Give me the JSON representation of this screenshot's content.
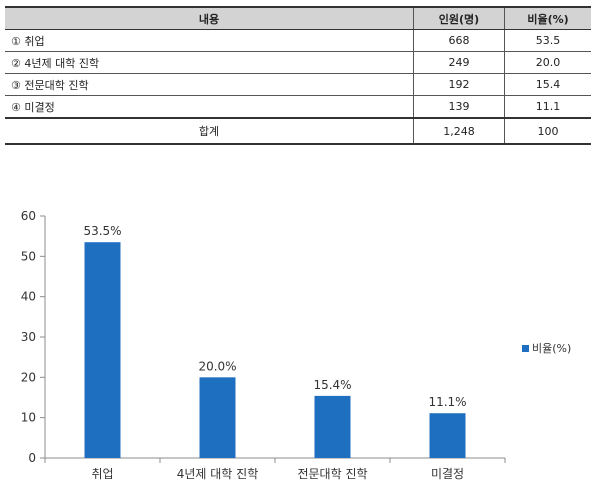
{
  "table": {
    "headers": [
      "내용",
      "인원(명)",
      "비율(%)"
    ],
    "rows": [
      {
        "label": "① 취업",
        "count": "668",
        "ratio": "53.5"
      },
      {
        "label": "② 4년제 대학 진학",
        "count": "249",
        "ratio": "20.0"
      },
      {
        "label": "③ 전문대학 진학",
        "count": "192",
        "ratio": "15.4"
      },
      {
        "label": "④ 미결정",
        "count": "139",
        "ratio": "11.1"
      }
    ],
    "total": {
      "label": "합계",
      "count": "1,248",
      "ratio": "100"
    }
  },
  "chart_data": {
    "type": "bar",
    "categories": [
      "취업",
      "4년제 대학 진학",
      "전문대학 진학",
      "미결정"
    ],
    "series": [
      {
        "name": "비율(%)",
        "values": [
          53.5,
          20.0,
          15.4,
          11.1
        ],
        "color": "#1f6fc1"
      }
    ],
    "data_labels": [
      "53.5%",
      "20.0%",
      "15.4%",
      "11.1%"
    ],
    "ylim": [
      0,
      60
    ],
    "yticks": [
      0,
      10,
      20,
      30,
      40,
      50,
      60
    ],
    "grid": false,
    "legend": "right"
  }
}
